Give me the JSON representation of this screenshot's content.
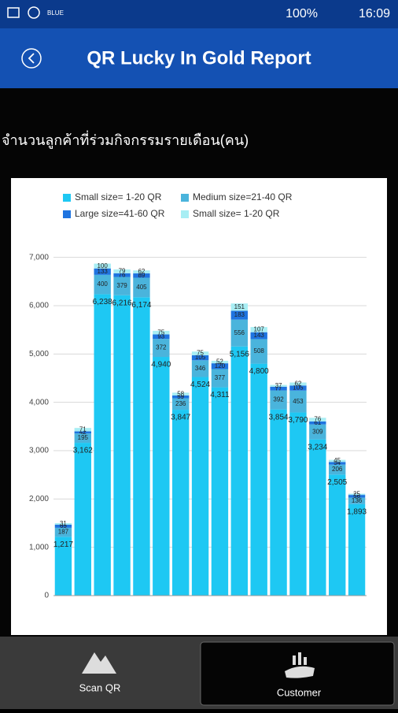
{
  "status_bar": {
    "carrier": "BLUE",
    "battery": "100%",
    "time": "16:09"
  },
  "header": {
    "title": "QR Lucky In Gold Report"
  },
  "section_title": "จำนวนลูกค้าที่ร่วมกิจกรรมรายเดือน(คน)",
  "chart_data": {
    "type": "stacked_bar",
    "categories": [
      null,
      null,
      null,
      null,
      null,
      null,
      null,
      null,
      null,
      null,
      null,
      null,
      null,
      null,
      null,
      null
    ],
    "series": [
      {
        "name": "Small size= 1-20 QR",
        "color": "#1ec8f3",
        "values": [
          1217,
          3162,
          6238,
          6216,
          6174,
          4940,
          3847,
          4524,
          4311,
          5156,
          4800,
          3854,
          3790,
          3234,
          2505,
          1893
        ],
        "value_labels": [
          "1,217",
          "3,162",
          "6,238",
          "6,216",
          "6,174",
          "4,940",
          "3,847",
          "4,524",
          "4,311",
          "5,156",
          "4,800",
          "3,854",
          "3,790",
          "3,234",
          "2,505",
          "1,893"
        ]
      },
      {
        "name": "Medium size=21-40 QR",
        "color": "#4ab4dc",
        "values": [
          187,
          195,
          400,
          379,
          405,
          372,
          236,
          346,
          377,
          556,
          508,
          392,
          453,
          309,
          206,
          136
        ]
      },
      {
        "name": "Large size=41-60 QR",
        "color": "#1f74e0",
        "values": [
          65,
          42,
          133,
          76,
          89,
          93,
          59,
          105,
          120,
          183,
          143,
          77,
          105,
          61,
          54,
          56
        ]
      },
      {
        "name": "Small size= 1-20 QR",
        "color": "#a8eef4",
        "values": [
          31,
          71,
          100,
          79,
          62,
          75,
          58,
          75,
          52,
          151,
          107,
          37,
          62,
          76,
          45,
          25
        ]
      }
    ],
    "ylim": [
      0,
      7500
    ],
    "yticks": [
      0,
      {
        "value": 1000,
        "label": "1,000"
      },
      {
        "value": 2000,
        "label": "2,000"
      },
      {
        "value": 3000,
        "label": "3,000"
      },
      {
        "value": 4000,
        "label": "4,000"
      },
      {
        "value": 5000,
        "label": "5,000"
      },
      {
        "value": 6000,
        "label": "6,000"
      },
      {
        "value": 7000,
        "label": "7,000"
      }
    ],
    "grid": true
  },
  "nav": {
    "items": [
      {
        "label": "Scan QR"
      },
      {
        "label": "Customer"
      }
    ]
  }
}
